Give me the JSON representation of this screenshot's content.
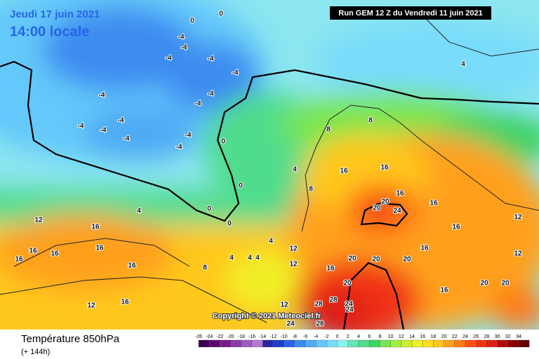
{
  "header": {
    "date": "Jeudi 17 juin 2021",
    "time": "14:00 locale",
    "run": "Run GEM 12 Z du Vendredi 11 juin 2021"
  },
  "copyright": "Copyright © 2021 Meteociel.fr",
  "footer": {
    "title": "Température 850hPa",
    "lead": "(+ 144h)"
  },
  "scale": {
    "labels": [
      -26,
      -24,
      -22,
      -20,
      -18,
      -16,
      -14,
      -12,
      -10,
      -8,
      -6,
      -4,
      -2,
      0,
      2,
      4,
      6,
      8,
      10,
      12,
      14,
      16,
      18,
      20,
      22,
      24,
      26,
      28,
      30,
      32,
      34
    ],
    "colors": [
      "#3c0050",
      "#5a0a6e",
      "#7a1a8e",
      "#8c3ca8",
      "#a05ac0",
      "#b478d4",
      "#2828a0",
      "#1e3cc8",
      "#2864e6",
      "#3c8cf0",
      "#50aaf5",
      "#64c8fa",
      "#78dcfa",
      "#8cf0f0",
      "#64e6b4",
      "#50dc8c",
      "#3cd264",
      "#78e650",
      "#a0f03c",
      "#c8f032",
      "#f0f028",
      "#ffdc1e",
      "#ffc81e",
      "#ffa01e",
      "#ff7814",
      "#ff5014",
      "#f03214",
      "#dc1e14",
      "#b40a0a",
      "#8c0000",
      "#640000"
    ]
  },
  "contour_labels": [
    0,
    0,
    -4,
    -4,
    -4,
    -4,
    -4,
    -4,
    -4,
    -4,
    -4,
    -4,
    -4,
    -4,
    -4,
    -4,
    0,
    0,
    0,
    0,
    4,
    12,
    16,
    16,
    16,
    16,
    16,
    16,
    8,
    4,
    4,
    4,
    4,
    4,
    8,
    8,
    8,
    16,
    16,
    20,
    20,
    24,
    16,
    16,
    16,
    12,
    12,
    16,
    20,
    20,
    20,
    20,
    24,
    24,
    28,
    28,
    24,
    28,
    12,
    12,
    16,
    16,
    16,
    20,
    20,
    12,
    12,
    4
  ]
}
